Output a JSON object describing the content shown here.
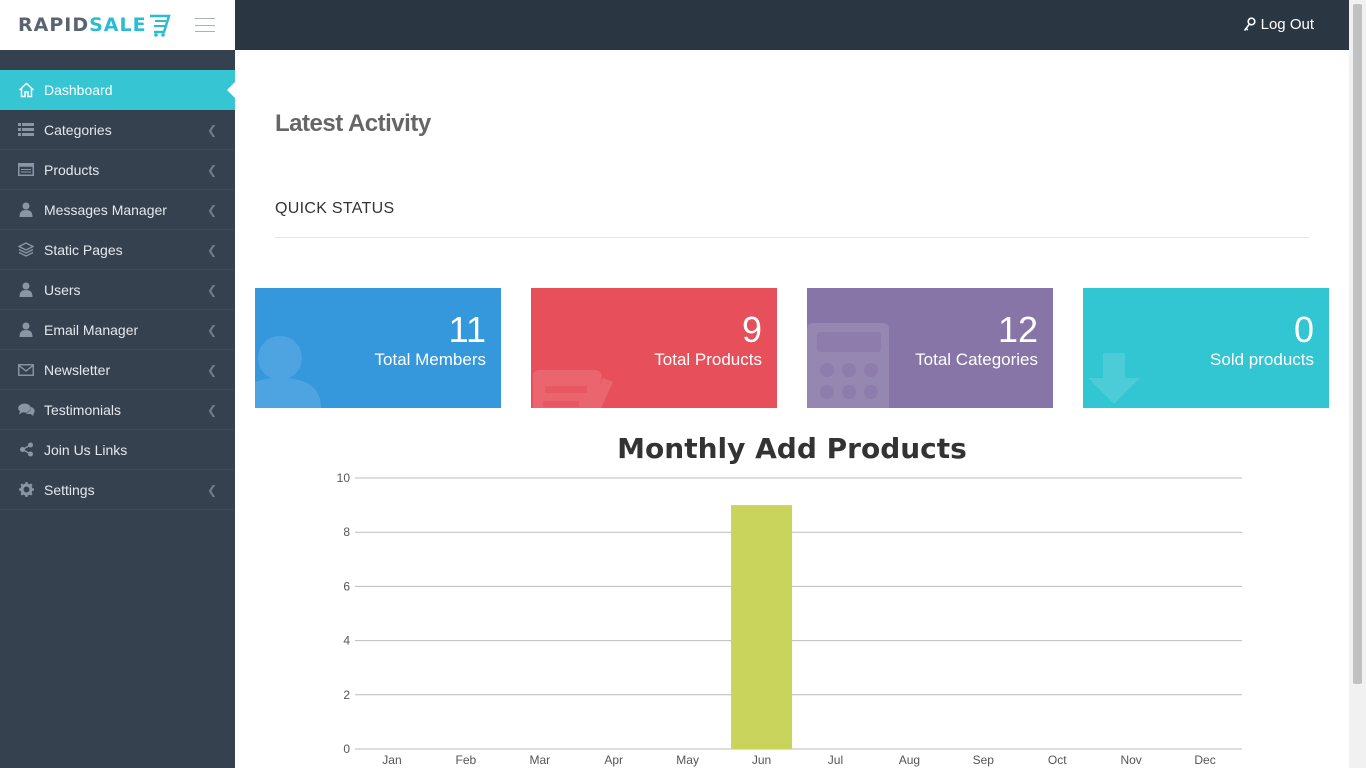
{
  "brand": {
    "part1": "RAPID",
    "part2": "SALE"
  },
  "topbar": {
    "logout_label": "Log Out"
  },
  "sidebar": {
    "items": [
      {
        "label": "Dashboard",
        "icon": "home-icon",
        "active": true,
        "has_arrow": false
      },
      {
        "label": "Categories",
        "icon": "list-icon",
        "active": false,
        "has_arrow": true
      },
      {
        "label": "Products",
        "icon": "browser-icon",
        "active": false,
        "has_arrow": true
      },
      {
        "label": "Messages Manager",
        "icon": "user-icon",
        "active": false,
        "has_arrow": true
      },
      {
        "label": "Static Pages",
        "icon": "layers-icon",
        "active": false,
        "has_arrow": true
      },
      {
        "label": "Users",
        "icon": "user-icon",
        "active": false,
        "has_arrow": true
      },
      {
        "label": "Email Manager",
        "icon": "user-icon",
        "active": false,
        "has_arrow": true
      },
      {
        "label": "Newsletter",
        "icon": "envelope-icon",
        "active": false,
        "has_arrow": true
      },
      {
        "label": "Testimonials",
        "icon": "comments-icon",
        "active": false,
        "has_arrow": true
      },
      {
        "label": "Join Us Links",
        "icon": "share-icon",
        "active": false,
        "has_arrow": false
      },
      {
        "label": "Settings",
        "icon": "gear-icon",
        "active": false,
        "has_arrow": true
      }
    ]
  },
  "main": {
    "page_title": "Latest Activity",
    "section_title": "QUICK STATUS",
    "stats": [
      {
        "value": "11",
        "label": "Total Members",
        "color": "#3598dc",
        "icon": "user-icon"
      },
      {
        "value": "9",
        "label": "Total Products",
        "color": "#e7505a",
        "icon": "document-icon"
      },
      {
        "value": "12",
        "label": "Total Categories",
        "color": "#8775a7",
        "icon": "calculator-icon"
      },
      {
        "value": "0",
        "label": "Sold products",
        "color": "#32c5d2",
        "icon": "download-icon"
      }
    ]
  },
  "chart_data": {
    "type": "bar",
    "title": "Monthly Add Products",
    "categories": [
      "Jan",
      "Feb",
      "Mar",
      "Apr",
      "May",
      "Jun",
      "Jul",
      "Aug",
      "Sep",
      "Oct",
      "Nov",
      "Dec"
    ],
    "values": [
      0,
      0,
      0,
      0,
      0,
      9,
      0,
      0,
      0,
      0,
      0,
      0
    ],
    "ylim": [
      0,
      10
    ],
    "yticks": [
      0,
      2,
      4,
      6,
      8,
      10
    ],
    "bar_color": "#c9d45c",
    "grid": true
  }
}
